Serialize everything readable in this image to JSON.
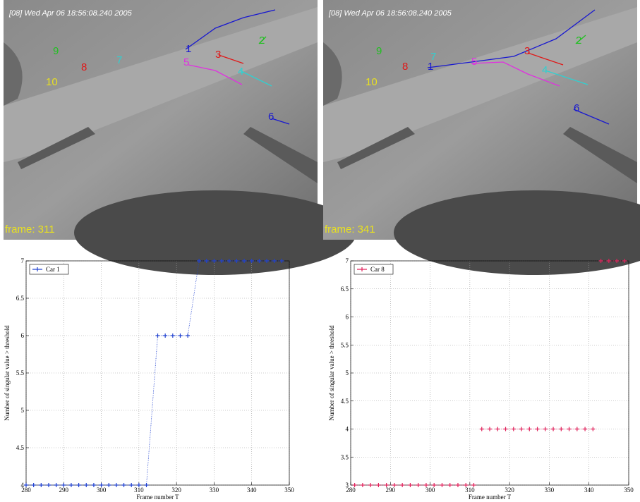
{
  "frames": [
    {
      "timestamp": "[08] Wed Apr 06 18:56:08.240 2005",
      "frame_label": "frame: 311",
      "cars": [
        {
          "label": "1",
          "color": "#1818d0"
        },
        {
          "label": "2",
          "color": "#20c020"
        },
        {
          "label": "3",
          "color": "#e01818"
        },
        {
          "label": "4",
          "color": "#30d0d0"
        },
        {
          "label": "5",
          "color": "#e030e0"
        },
        {
          "label": "6",
          "color": "#1818d0"
        },
        {
          "label": "7",
          "color": "#30d0d0"
        },
        {
          "label": "8",
          "color": "#e01818"
        },
        {
          "label": "9",
          "color": "#20c020"
        },
        {
          "label": "10",
          "color": "#e8e020"
        }
      ]
    },
    {
      "timestamp": "[08] Wed Apr 06 18:56:08.240 2005",
      "frame_label": "frame: 341",
      "cars": [
        {
          "label": "1",
          "color": "#1818d0"
        },
        {
          "label": "2",
          "color": "#20c020"
        },
        {
          "label": "3",
          "color": "#e01818"
        },
        {
          "label": "4",
          "color": "#30d0d0"
        },
        {
          "label": "5",
          "color": "#e030e0"
        },
        {
          "label": "6",
          "color": "#1818d0"
        },
        {
          "label": "7",
          "color": "#30d0d0"
        },
        {
          "label": "8",
          "color": "#e01818"
        },
        {
          "label": "9",
          "color": "#20c020"
        },
        {
          "label": "10",
          "color": "#e8e020"
        }
      ]
    }
  ],
  "chart_data": [
    {
      "type": "line",
      "xlabel": "Frame number T",
      "ylabel": "Number of singular value > threshold",
      "xlim": [
        280,
        350
      ],
      "ylim": [
        4,
        7
      ],
      "xticks": [
        280,
        290,
        300,
        310,
        320,
        330,
        340,
        350
      ],
      "yticks": [
        4,
        4.5,
        5,
        5.5,
        6,
        6.5,
        7
      ],
      "grid": true,
      "legend": "upper left",
      "x": [
        280,
        282,
        284,
        286,
        288,
        290,
        292,
        294,
        296,
        298,
        300,
        302,
        304,
        306,
        308,
        310,
        312,
        315,
        317,
        319,
        321,
        323,
        326,
        328,
        330,
        332,
        334,
        336,
        338,
        340,
        342,
        344,
        346,
        348
      ],
      "series": [
        {
          "name": "Car 1",
          "color": "#1f40d0",
          "marker": "+",
          "values": [
            4,
            4,
            4,
            4,
            4,
            4,
            4,
            4,
            4,
            4,
            4,
            4,
            4,
            4,
            4,
            4,
            4,
            6,
            6,
            6,
            6,
            6,
            7,
            7,
            7,
            7,
            7,
            7,
            7,
            7,
            7,
            7,
            7,
            7
          ]
        }
      ]
    },
    {
      "type": "line",
      "xlabel": "Frame number T",
      "ylabel": "Number of singular value > threshold",
      "xlim": [
        280,
        350
      ],
      "ylim": [
        3,
        7
      ],
      "xticks": [
        280,
        290,
        300,
        310,
        320,
        330,
        340,
        350
      ],
      "yticks": [
        3,
        3.5,
        4,
        4.5,
        5,
        5.5,
        6,
        6.5,
        7
      ],
      "grid": true,
      "legend": "upper left",
      "x": [
        281,
        283,
        285,
        287,
        289,
        291,
        293,
        295,
        297,
        299,
        301,
        303,
        305,
        307,
        309,
        311,
        null,
        313,
        315,
        317,
        319,
        321,
        323,
        325,
        327,
        329,
        331,
        333,
        335,
        337,
        339,
        341,
        null,
        343,
        345,
        347,
        349
      ],
      "series": [
        {
          "name": "Car 8",
          "color": "#e0205a",
          "marker": "+",
          "values": [
            3,
            3,
            3,
            3,
            3,
            3,
            3,
            3,
            3,
            3,
            3,
            3,
            3,
            3,
            3,
            3,
            null,
            4,
            4,
            4,
            4,
            4,
            4,
            4,
            4,
            4,
            4,
            4,
            4,
            4,
            4,
            4,
            null,
            7,
            7,
            7,
            7
          ]
        }
      ]
    }
  ]
}
